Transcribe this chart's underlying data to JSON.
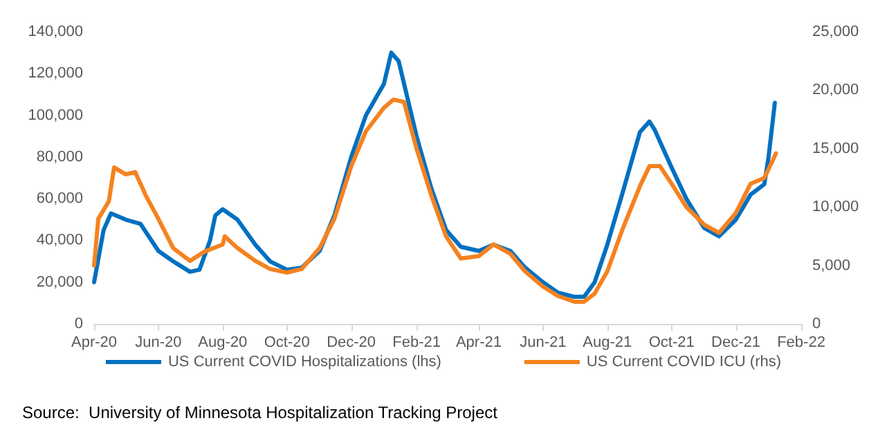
{
  "chart_data": {
    "type": "line",
    "annotations": [
      "Source:  University of Minnesota Hospitalization Tracking Project"
    ],
    "xlim": [
      "2020-04-01",
      "2022-02-01"
    ],
    "xticks": [
      {
        "value": "2020-04-01",
        "label": "Apr-20"
      },
      {
        "value": "2020-06-01",
        "label": "Jun-20"
      },
      {
        "value": "2020-08-01",
        "label": "Aug-20"
      },
      {
        "value": "2020-10-01",
        "label": "Oct-20"
      },
      {
        "value": "2020-12-01",
        "label": "Dec-20"
      },
      {
        "value": "2021-02-01",
        "label": "Feb-21"
      },
      {
        "value": "2021-04-01",
        "label": "Apr-21"
      },
      {
        "value": "2021-06-01",
        "label": "Jun-21"
      },
      {
        "value": "2021-08-01",
        "label": "Aug-21"
      },
      {
        "value": "2021-10-01",
        "label": "Oct-21"
      },
      {
        "value": "2021-12-01",
        "label": "Dec-21"
      },
      {
        "value": "2022-02-01",
        "label": "Feb-22"
      }
    ],
    "ylim": [
      0,
      140000
    ],
    "yticks": [
      0,
      {
        "value": 20000,
        "label": "20,000"
      },
      {
        "value": 40000,
        "label": "40,000"
      },
      {
        "value": 60000,
        "label": "60,000"
      },
      {
        "value": 80000,
        "label": "80,000"
      },
      {
        "value": 100000,
        "label": "100,000"
      },
      {
        "value": 120000,
        "label": "120,000"
      },
      {
        "value": 140000,
        "label": "140,000"
      }
    ],
    "y2lim": [
      0,
      25000
    ],
    "y2ticks": [
      0,
      {
        "value": 5000,
        "label": "5,000"
      },
      {
        "value": 10000,
        "label": "10,000"
      },
      {
        "value": 15000,
        "label": "15,000"
      },
      {
        "value": 20000,
        "label": "20,000"
      },
      {
        "value": 25000,
        "label": "25,000"
      }
    ],
    "grid": false,
    "legend": "bottom",
    "marker": "none",
    "line_style": "solid",
    "series": [
      {
        "name": "US Current COVID Hospitalizations (lhs)",
        "color": "#0070c0",
        "x": [
          "2020-04-01",
          "2020-04-10",
          "2020-04-17",
          "2020-05-01",
          "2020-05-15",
          "2020-06-01",
          "2020-06-15",
          "2020-07-01",
          "2020-07-10",
          "2020-07-20",
          "2020-07-25",
          "2020-08-01",
          "2020-08-15",
          "2020-09-01",
          "2020-09-15",
          "2020-10-01",
          "2020-10-15",
          "2020-11-01",
          "2020-11-15",
          "2020-12-01",
          "2020-12-15",
          "2021-01-01",
          "2021-01-08",
          "2021-01-15",
          "2021-02-01",
          "2021-02-15",
          "2021-03-01",
          "2021-03-15",
          "2021-04-01",
          "2021-04-15",
          "2021-05-01",
          "2021-05-15",
          "2021-06-01",
          "2021-06-15",
          "2021-07-01",
          "2021-07-10",
          "2021-07-20",
          "2021-08-01",
          "2021-08-15",
          "2021-09-01",
          "2021-09-10",
          "2021-09-15",
          "2021-10-01",
          "2021-10-15",
          "2021-11-01",
          "2021-11-15",
          "2021-12-01",
          "2021-12-15",
          "2021-12-28",
          "2022-01-01",
          "2022-01-07"
        ],
        "values": [
          20000,
          45000,
          53000,
          50000,
          48000,
          35000,
          30000,
          25000,
          26000,
          40000,
          52000,
          55000,
          50000,
          38000,
          30000,
          26000,
          27000,
          35000,
          52000,
          80000,
          100000,
          115000,
          130000,
          126000,
          90000,
          65000,
          45000,
          37000,
          35000,
          38000,
          35000,
          27000,
          20000,
          15000,
          13000,
          13000,
          20000,
          38000,
          62000,
          92000,
          97000,
          93000,
          75000,
          60000,
          46000,
          42000,
          50000,
          62000,
          67000,
          80000,
          106000
        ]
      },
      {
        "name": "US Current COVID ICU (rhs)",
        "color": "#f58220",
        "axis": "y2",
        "x": [
          "2020-04-01",
          "2020-04-05",
          "2020-04-15",
          "2020-04-20",
          "2020-05-01",
          "2020-05-10",
          "2020-05-20",
          "2020-06-01",
          "2020-06-15",
          "2020-07-01",
          "2020-07-15",
          "2020-08-01",
          "2020-08-03",
          "2020-08-15",
          "2020-09-01",
          "2020-09-15",
          "2020-10-01",
          "2020-10-15",
          "2020-11-01",
          "2020-11-15",
          "2020-12-01",
          "2020-12-15",
          "2021-01-01",
          "2021-01-10",
          "2021-01-20",
          "2021-02-01",
          "2021-02-15",
          "2021-03-01",
          "2021-03-15",
          "2021-04-01",
          "2021-04-15",
          "2021-05-01",
          "2021-05-15",
          "2021-06-01",
          "2021-06-15",
          "2021-07-01",
          "2021-07-10",
          "2021-07-20",
          "2021-08-01",
          "2021-08-15",
          "2021-09-01",
          "2021-09-10",
          "2021-09-20",
          "2021-10-01",
          "2021-10-15",
          "2021-11-01",
          "2021-11-15",
          "2021-12-01",
          "2021-12-15",
          "2021-12-28",
          "2022-01-05",
          "2022-01-08"
        ],
        "values": [
          5000,
          9000,
          10500,
          13400,
          12800,
          13000,
          11000,
          9000,
          6500,
          5400,
          6200,
          6800,
          7500,
          6500,
          5400,
          4700,
          4400,
          4700,
          6500,
          9000,
          13500,
          16500,
          18500,
          19200,
          19000,
          15000,
          11000,
          7500,
          5600,
          5800,
          6800,
          6000,
          4500,
          3200,
          2400,
          1900,
          1900,
          2600,
          4500,
          8000,
          11800,
          13500,
          13500,
          12000,
          10000,
          8500,
          7800,
          9500,
          12000,
          12500,
          14000,
          14600
        ]
      }
    ]
  }
}
